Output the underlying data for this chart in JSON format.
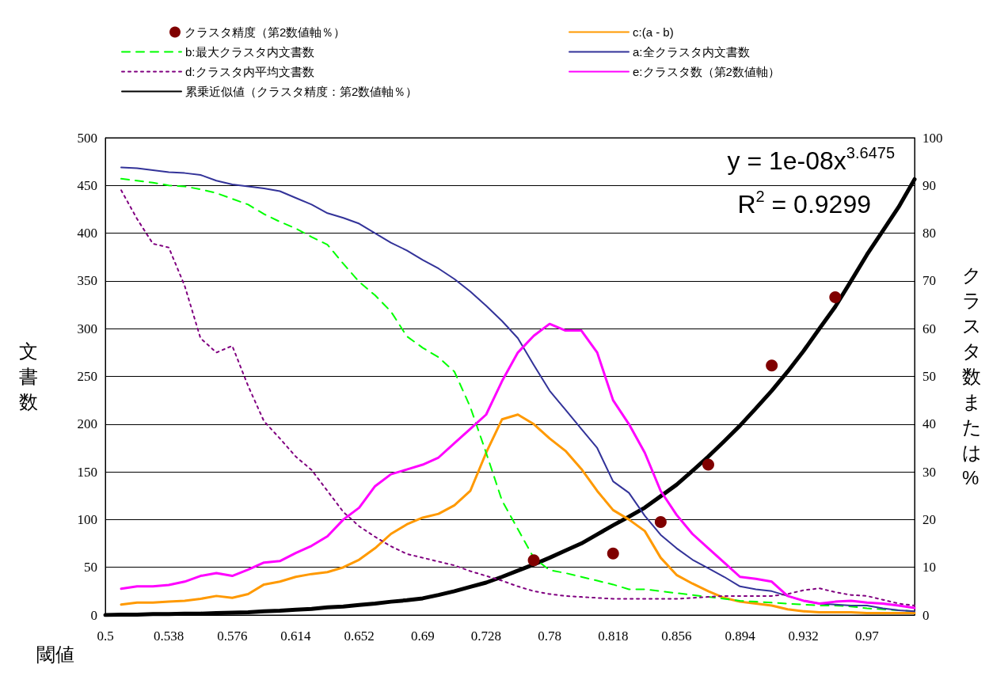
{
  "chart_data": {
    "type": "line",
    "legend": "top",
    "grid": "y",
    "xlabel": "閾値",
    "ylabel": "文書数",
    "y2label": "クラスタ数または%",
    "annotations": [
      "y = 1e-08x$^{3.6475}$",
      "R$^{2}$ = 0.9299"
    ],
    "categories": [
      "0.5",
      null,
      null,
      null,
      "0.538",
      null,
      null,
      null,
      "0.576",
      null,
      null,
      null,
      "0.614",
      null,
      null,
      null,
      "0.652",
      null,
      null,
      null,
      "0.69",
      null,
      null,
      null,
      "0.728",
      null,
      null,
      null,
      "0.78",
      null,
      null,
      null,
      "0.818",
      null,
      null,
      null,
      "0.856",
      null,
      null,
      null,
      "0.894",
      null,
      null,
      null,
      "0.932",
      null,
      null,
      null,
      "0.97",
      null,
      null,
      null
    ],
    "ylim": [
      0,
      500
    ],
    "yticks": [
      0,
      50,
      100,
      150,
      200,
      250,
      300,
      350,
      400,
      450,
      500
    ],
    "y2lim": [
      0,
      100
    ],
    "y2ticks": [
      0,
      10,
      20,
      30,
      40,
      50,
      60,
      70,
      80,
      90,
      100
    ],
    "series": [
      {
        "name": "クラスタ精度（第2数値軸％）",
        "type": "scatter",
        "axis": "y2",
        "marker": "circle",
        "color": "#800000",
        "values": [
          null,
          null,
          null,
          null,
          null,
          null,
          null,
          null,
          null,
          null,
          null,
          null,
          null,
          null,
          null,
          null,
          null,
          null,
          null,
          null,
          null,
          null,
          null,
          null,
          null,
          null,
          null,
          11.5,
          null,
          null,
          null,
          null,
          12.9,
          null,
          null,
          19.5,
          null,
          null,
          31.5,
          null,
          null,
          null,
          52.3,
          null,
          null,
          null,
          66.6,
          null,
          null,
          null,
          null,
          null
        ]
      },
      {
        "name": "c:(a - b)",
        "marker": "none",
        "line_style": "solid",
        "color": "#ff9900",
        "values": [
          null,
          11,
          13,
          13,
          14,
          15,
          17,
          20,
          18,
          22,
          32,
          35,
          40,
          43,
          45,
          50,
          58,
          70,
          85,
          95,
          102,
          106,
          115,
          130,
          170,
          205,
          210,
          200,
          185,
          172,
          153,
          130,
          110,
          100,
          88,
          60,
          42,
          33,
          25,
          18,
          14,
          12,
          10,
          6,
          4,
          3,
          3,
          3,
          2,
          2,
          2,
          2
        ]
      },
      {
        "name": "b:最大クラスタ内文書数",
        "marker": "none",
        "line_style": "dashed",
        "color": "#00ff00",
        "values": [
          null,
          457,
          455,
          453,
          450,
          449,
          446,
          442,
          436,
          430,
          420,
          412,
          405,
          396,
          388,
          368,
          349,
          335,
          318,
          292,
          280,
          270,
          255,
          218,
          170,
          120,
          90,
          60,
          47,
          44,
          40,
          36,
          32,
          27,
          27,
          25,
          23,
          21,
          19,
          17,
          15,
          14,
          13,
          12,
          11,
          10,
          10,
          9,
          7,
          6,
          5,
          4
        ]
      },
      {
        "name": "a:全クラスタ内文書数",
        "marker": "none",
        "line_style": "solid",
        "color": "#333399",
        "values": [
          null,
          469,
          468,
          466,
          464,
          463,
          461,
          455,
          451,
          449,
          447,
          444,
          437,
          430,
          421,
          416,
          410,
          400,
          390,
          382,
          372,
          363,
          352,
          339,
          324,
          308,
          290,
          262,
          235,
          215,
          195,
          175,
          140,
          128,
          104,
          84,
          70,
          58,
          49,
          40,
          30,
          27,
          25,
          20,
          15,
          12,
          11,
          10,
          10,
          7,
          5,
          4
        ]
      },
      {
        "name": "d:クラスタ内平均文書数",
        "marker": "none",
        "line_style": "dotted",
        "color": "#800080",
        "values": [
          null,
          445,
          415,
          389,
          385,
          345,
          290,
          275,
          282,
          240,
          203,
          185,
          166,
          152,
          130,
          108,
          93,
          82,
          72,
          64,
          60,
          56,
          52,
          46,
          41,
          36,
          30,
          25,
          22,
          20,
          19,
          18,
          17,
          17,
          17,
          17,
          17,
          18,
          19,
          20,
          20,
          20,
          20,
          22,
          26,
          28,
          24,
          21,
          20,
          16,
          12,
          10
        ]
      },
      {
        "name": "e:クラスタ数（第2数値軸）",
        "axis": "y2",
        "marker": "none",
        "line_style": "solid",
        "color": "#ff00ff",
        "values": [
          null,
          5.5,
          6,
          6,
          6.3,
          7,
          8.2,
          8.8,
          8.2,
          9.5,
          11,
          11.3,
          13,
          14.5,
          16.5,
          20,
          22.5,
          27,
          29.5,
          30.5,
          31.5,
          33,
          36,
          39,
          42,
          49,
          55,
          58.5,
          61,
          59.6,
          59.6,
          55,
          45,
          40,
          34,
          26,
          21,
          17,
          14,
          11,
          8,
          7.6,
          7,
          4,
          3,
          2.4,
          2.8,
          3,
          2.6,
          2.4,
          2,
          1.5
        ]
      },
      {
        "name": "累乗近似値（クラスタ精度：第2数値軸％）",
        "axis": "y2",
        "marker": "none",
        "line_style": "solid",
        "color": "#000000",
        "values": [
          0,
          0.1,
          0.1,
          0.2,
          0.2,
          0.3,
          0.3,
          0.4,
          0.5,
          0.6,
          0.8,
          0.9,
          1.1,
          1.3,
          1.6,
          1.8,
          2.1,
          2.4,
          2.8,
          3.1,
          3.5,
          4.2,
          5,
          5.9,
          6.8,
          8,
          9.3,
          10.6,
          12,
          13.5,
          15,
          16.9,
          18.8,
          20.6,
          22.5,
          24.9,
          27.3,
          30.2,
          33.2,
          36.4,
          39.7,
          43.3,
          47,
          51,
          55.3,
          60,
          64.6,
          70,
          75.5,
          80.5,
          85.5,
          91.3
        ]
      }
    ]
  }
}
